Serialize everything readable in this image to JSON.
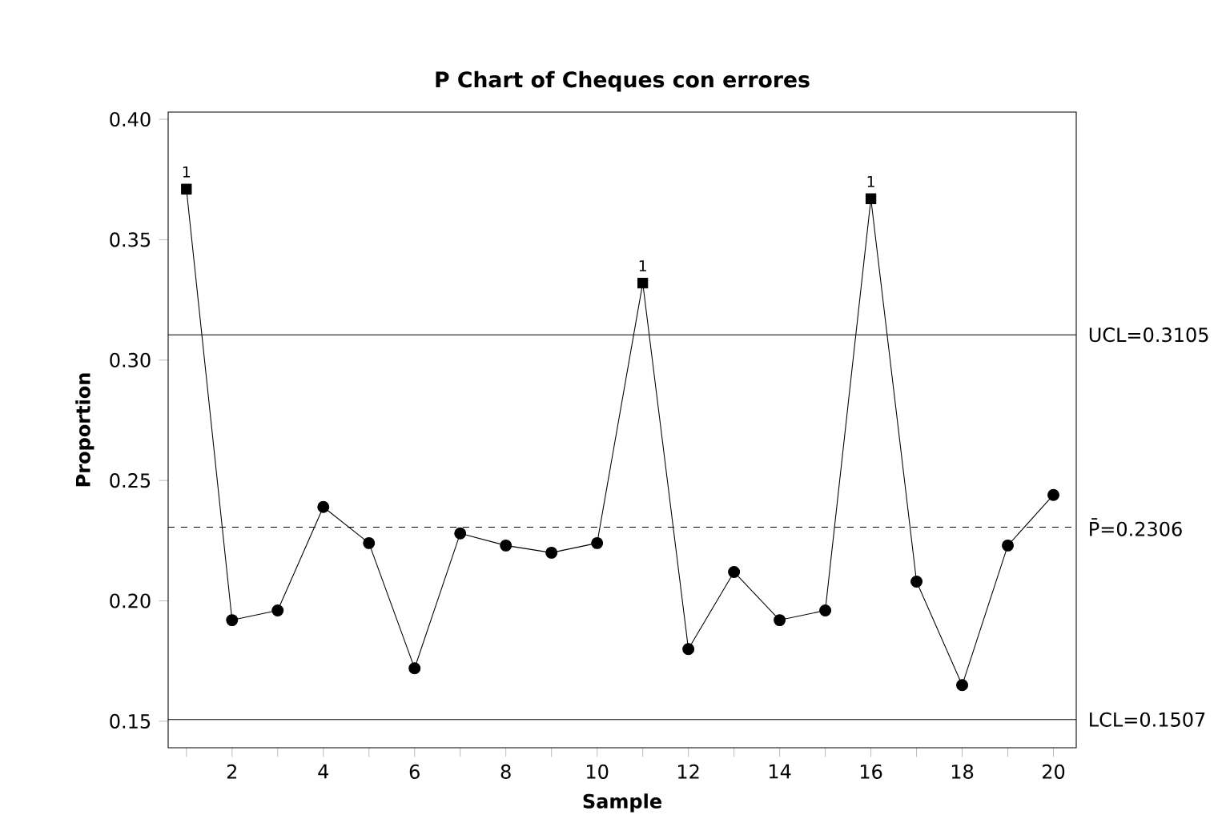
{
  "chart_data": {
    "type": "line",
    "title": "P Chart of Cheques con errores",
    "xlabel": "Sample",
    "ylabel": "Proportion",
    "x": [
      1,
      2,
      3,
      4,
      5,
      6,
      7,
      8,
      9,
      10,
      11,
      12,
      13,
      14,
      15,
      16,
      17,
      18,
      19,
      20
    ],
    "series": [
      {
        "color": "#000000",
        "marker": "none",
        "values": [
          0.371,
          0.192,
          0.196,
          0.239,
          0.224,
          0.172,
          0.228,
          0.223,
          0.22,
          0.224,
          0.332,
          0.18,
          0.212,
          0.192,
          0.196,
          0.367,
          0.208,
          0.165,
          0.223,
          0.244
        ]
      },
      {
        "type": "scatter",
        "color": "#000000",
        "marker": "circle",
        "values": [
          null,
          0.192,
          0.196,
          0.239,
          0.224,
          0.172,
          0.228,
          0.223,
          0.22,
          0.224,
          null,
          0.18,
          0.212,
          0.192,
          0.196,
          null,
          0.208,
          0.165,
          0.223,
          0.244
        ]
      },
      {
        "type": "scatter",
        "color": "#000000",
        "marker": "square",
        "x": [
          1,
          11,
          16
        ],
        "values": [
          0.371,
          0.332,
          0.367
        ]
      }
    ],
    "annotations": [
      {
        "text": "1",
        "x": 1,
        "y": 0.371
      },
      {
        "text": "1",
        "x": 11,
        "y": 0.332
      },
      {
        "text": "1",
        "x": 16,
        "y": 0.367
      }
    ],
    "ref_lines": [
      {
        "axis": "y",
        "value": 0.3105,
        "label": "UCL=0.3105",
        "line_style": "solid"
      },
      {
        "axis": "y",
        "value": 0.2306,
        "label": "P̄=0.2306",
        "line_style": "dashed"
      },
      {
        "axis": "y",
        "value": 0.1507,
        "label": "LCL=0.1507",
        "line_style": "solid"
      }
    ],
    "xlim": [
      0.6,
      20.5
    ],
    "ylim": [
      0.139,
      0.403
    ],
    "xticks": [
      {
        "value": 1,
        "label": null
      },
      2,
      {
        "value": 3,
        "label": null
      },
      4,
      {
        "value": 5,
        "label": null
      },
      6,
      {
        "value": 7,
        "label": null
      },
      8,
      {
        "value": 9,
        "label": null
      },
      10,
      {
        "value": 11,
        "label": null
      },
      12,
      {
        "value": 13,
        "label": null
      },
      14,
      {
        "value": 15,
        "label": null
      },
      16,
      {
        "value": 17,
        "label": null
      },
      18,
      {
        "value": 19,
        "label": null
      },
      20
    ],
    "yticks": [
      0.15,
      {
        "value": 0.2,
        "label": "0.20"
      },
      0.25,
      {
        "value": 0.3,
        "label": "0.30"
      },
      0.35,
      {
        "value": 0.4,
        "label": "0.40"
      }
    ],
    "grid": false
  }
}
